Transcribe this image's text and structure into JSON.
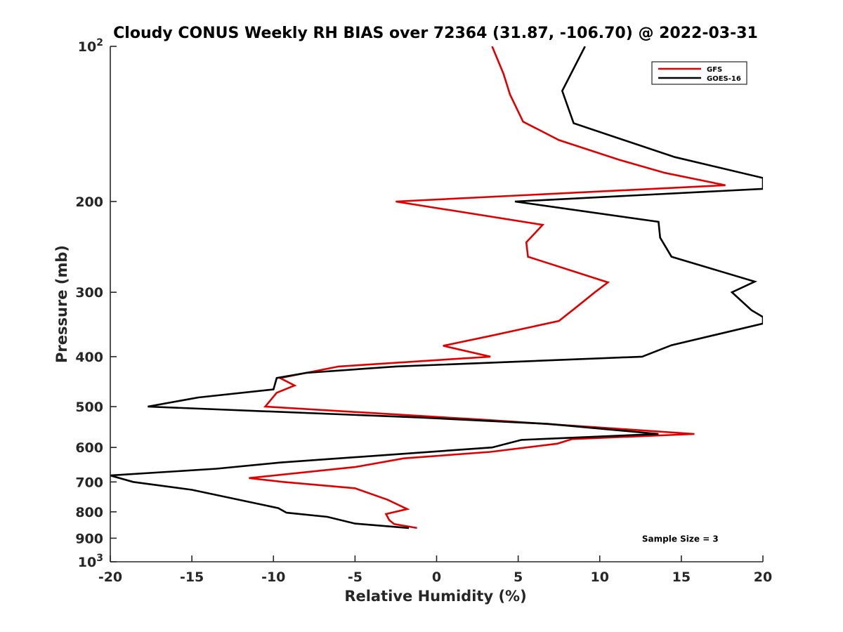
{
  "chart_data": {
    "type": "line",
    "title": "Cloudy CONUS Weekly RH BIAS over 72364 (31.87, -106.70) @ 2022-03-31",
    "xlabel": "Relative Humidity (%)",
    "ylabel": "Pressure (mb)",
    "xlim": [
      -20,
      20
    ],
    "ylim": [
      100,
      1000
    ],
    "y_scale": "log",
    "y_reversed": true,
    "grid": false,
    "legend_position": "top-right",
    "x_ticks": [
      {
        "value": -20,
        "label": "-20"
      },
      {
        "value": -15,
        "label": "-15"
      },
      {
        "value": -10,
        "label": "-10"
      },
      {
        "value": -5,
        "label": "-5"
      },
      {
        "value": 0,
        "label": "0"
      },
      {
        "value": 5,
        "label": "5"
      },
      {
        "value": 10,
        "label": "10"
      },
      {
        "value": 15,
        "label": "15"
      },
      {
        "value": 20,
        "label": "20"
      }
    ],
    "y_ticks": [
      {
        "value": 100,
        "base": "10",
        "exp": "2"
      },
      {
        "value": 200,
        "label": "200"
      },
      {
        "value": 300,
        "label": "300"
      },
      {
        "value": 400,
        "label": "400"
      },
      {
        "value": 500,
        "label": "500"
      },
      {
        "value": 600,
        "label": "600"
      },
      {
        "value": 700,
        "label": "700"
      },
      {
        "value": 800,
        "label": "800"
      },
      {
        "value": 900,
        "label": "900"
      },
      {
        "value": 1000,
        "base": "10",
        "exp": "3"
      }
    ],
    "series": [
      {
        "name": "GFS",
        "color": "#e00000",
        "points": [
          [
            3.4,
            100
          ],
          [
            4.1,
            113
          ],
          [
            4.5,
            124
          ],
          [
            5.3,
            140
          ],
          [
            7.5,
            152
          ],
          [
            11.2,
            166
          ],
          [
            14.0,
            176
          ],
          [
            17.7,
            186
          ],
          [
            -2.5,
            200
          ],
          [
            6.5,
            222
          ],
          [
            5.5,
            240
          ],
          [
            5.6,
            256
          ],
          [
            10.5,
            287
          ],
          [
            9.7,
            300
          ],
          [
            8.6,
            320
          ],
          [
            7.5,
            341
          ],
          [
            3.4,
            364
          ],
          [
            0.4,
            381
          ],
          [
            3.3,
            400
          ],
          [
            -6.0,
            418
          ],
          [
            -9.6,
            440
          ],
          [
            -8.7,
            455
          ],
          [
            -9.8,
            470
          ],
          [
            -10.5,
            500
          ],
          [
            2.8,
            530
          ],
          [
            10.4,
            550
          ],
          [
            15.8,
            565
          ],
          [
            8.3,
            578
          ],
          [
            7.4,
            590
          ],
          [
            3.3,
            612
          ],
          [
            -2.0,
            630
          ],
          [
            -5.0,
            655
          ],
          [
            -11.5,
            688
          ],
          [
            -9.4,
            700
          ],
          [
            -5.0,
            720
          ],
          [
            -3.0,
            758
          ],
          [
            -1.8,
            790
          ],
          [
            -3.1,
            808
          ],
          [
            -2.9,
            830
          ],
          [
            -2.6,
            845
          ],
          [
            -1.2,
            860
          ]
        ]
      },
      {
        "name": "GOES-16",
        "color": "#000000",
        "points": [
          [
            9.1,
            100
          ],
          [
            7.7,
            122
          ],
          [
            8.4,
            141
          ],
          [
            14.6,
            164
          ],
          [
            20.0,
            180
          ],
          [
            20.0,
            189
          ],
          [
            4.8,
            200
          ],
          [
            13.6,
            219
          ],
          [
            13.7,
            235
          ],
          [
            14.4,
            256
          ],
          [
            19.5,
            286
          ],
          [
            18.1,
            300
          ],
          [
            19.3,
            325
          ],
          [
            20.0,
            335
          ],
          [
            20.0,
            345
          ],
          [
            14.4,
            380
          ],
          [
            12.6,
            400
          ],
          [
            -2.5,
            418
          ],
          [
            -8.0,
            430
          ],
          [
            -9.8,
            440
          ],
          [
            -10.0,
            463
          ],
          [
            -14.6,
            480
          ],
          [
            -17.7,
            500
          ],
          [
            -1.0,
            525
          ],
          [
            6.8,
            540
          ],
          [
            13.6,
            565
          ],
          [
            5.2,
            580
          ],
          [
            3.4,
            600
          ],
          [
            -9.6,
            642
          ],
          [
            -13.5,
            660
          ],
          [
            -20.0,
            680
          ],
          [
            -18.6,
            700
          ],
          [
            -15.0,
            725
          ],
          [
            -9.7,
            787
          ],
          [
            -9.2,
            803
          ],
          [
            -6.7,
            818
          ],
          [
            -5.0,
            843
          ],
          [
            -1.7,
            860
          ]
        ]
      }
    ],
    "annotations": [
      {
        "text": "Sample Size = 3",
        "data_x": 15.0,
        "data_y": 900
      }
    ]
  }
}
